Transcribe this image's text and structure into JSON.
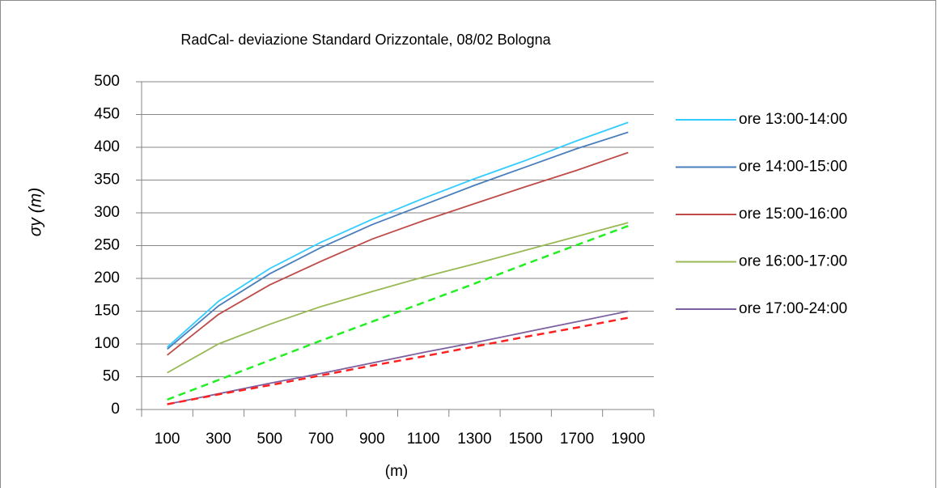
{
  "chart_data": {
    "type": "line",
    "title": "RadCal- deviazione Standard Orizzontale, 08/02 Bologna",
    "x_label": "(m)",
    "y_label": "σy (m)",
    "categories": [
      "100",
      "300",
      "500",
      "700",
      "900",
      "1100",
      "1300",
      "1500",
      "1700",
      "1900"
    ],
    "series": [
      {
        "name": "ore 13:00-14:00",
        "color": "#33ccff",
        "values": [
          95,
          165,
          215,
          255,
          290,
          322,
          352,
          380,
          410,
          438
        ]
      },
      {
        "name": "ore 14:00-15:00",
        "color": "#4a7ebb",
        "values": [
          92,
          158,
          207,
          247,
          282,
          312,
          342,
          370,
          398,
          423
        ]
      },
      {
        "name": "ore 15:00-16:00",
        "color": "#be4b48",
        "values": [
          83,
          145,
          190,
          226,
          260,
          288,
          314,
          340,
          365,
          392
        ]
      },
      {
        "name": "ore 16:00-17:00",
        "color": "#98b954",
        "values": [
          56,
          100,
          130,
          157,
          180,
          202,
          222,
          243,
          264,
          285
        ]
      },
      {
        "name": "ore 17:00-24:00",
        "color": "#7d60a0",
        "values": [
          8,
          24,
          40,
          55,
          71,
          87,
          102,
          118,
          134,
          150
        ]
      },
      {
        "color": "#22ee22",
        "dash": true,
        "values": [
          15,
          45,
          75,
          105,
          134,
          163,
          192,
          222,
          251,
          280
        ]
      },
      {
        "color": "#ff2020",
        "dash": true,
        "values": [
          8,
          23,
          37,
          52,
          67,
          81,
          96,
          111,
          125,
          140
        ]
      }
    ],
    "ylim": [
      0,
      500
    ],
    "yticks": [
      0,
      50,
      100,
      150,
      200,
      250,
      300,
      350,
      400,
      450,
      500
    ],
    "grid": true,
    "legend": "right"
  }
}
